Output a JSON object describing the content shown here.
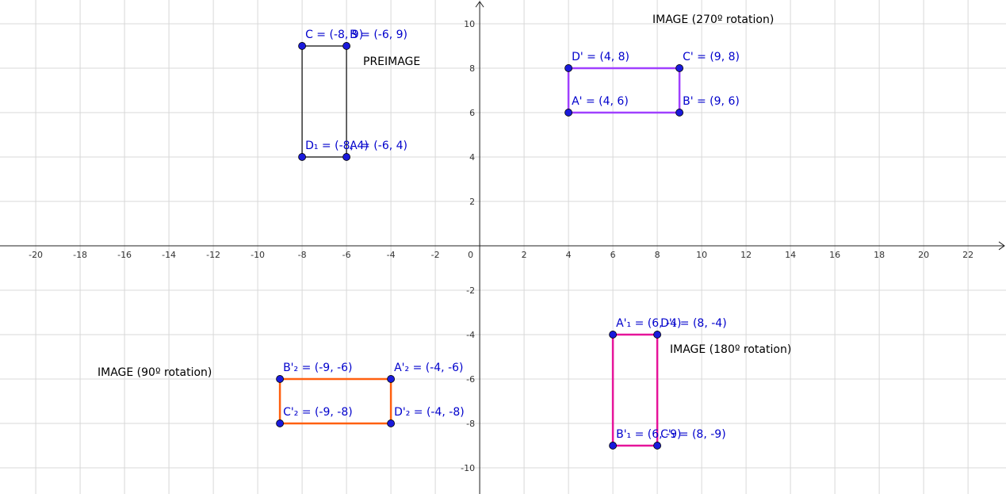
{
  "chart_data": {
    "type": "geometry",
    "xlim": [
      -21.61,
      23.71
    ],
    "ylim": [
      -11.18,
      11.07
    ],
    "xticks": [
      -20,
      -18,
      -16,
      -14,
      -12,
      -10,
      -8,
      -6,
      -4,
      -2,
      0,
      2,
      4,
      6,
      8,
      10,
      12,
      14,
      16,
      18,
      20,
      22
    ],
    "yticks": [
      -10,
      -8,
      -6,
      -4,
      -2,
      2,
      4,
      6,
      8,
      10
    ],
    "grid": true,
    "annotations": [
      "IMAGE (270º rotation)",
      "PREIMAGE",
      "IMAGE (180º rotation)",
      "IMAGE (90º rotation)"
    ],
    "polygons": [
      {
        "color": "#333333",
        "points": [
          {
            "label": "A = (-6, 4)",
            "x": -6,
            "y": 4
          },
          {
            "label": "B = (-6, 9)",
            "x": -6,
            "y": 9
          },
          {
            "label": "C = (-8, 9)",
            "x": -8,
            "y": 9
          },
          {
            "label": "D₁ = (-8, 4)",
            "x": -8,
            "y": 4
          }
        ]
      },
      {
        "color": "#a040ff",
        "points": [
          {
            "label": "A' = (4, 6)",
            "x": 4,
            "y": 6
          },
          {
            "label": "B' = (9, 6)",
            "x": 9,
            "y": 6
          },
          {
            "label": "C' = (9, 8)",
            "x": 9,
            "y": 8
          },
          {
            "label": "D' = (4, 8)",
            "x": 4,
            "y": 8
          }
        ]
      },
      {
        "color": "#e6149a",
        "points": [
          {
            "label": "A'₁ = (6, -4)",
            "x": 6,
            "y": -4
          },
          {
            "label": "B'₁ = (6, -9)",
            "x": 6,
            "y": -9
          },
          {
            "label": "C'₁ = (8, -9)",
            "x": 8,
            "y": -9
          },
          {
            "label": "D'₁ = (8, -4)",
            "x": 8,
            "y": -4
          }
        ]
      },
      {
        "color": "#ff6010",
        "points": [
          {
            "label": "A'₂ = (-4, -6)",
            "x": -4,
            "y": -6
          },
          {
            "label": "B'₂ = (-9, -6)",
            "x": -9,
            "y": -6
          },
          {
            "label": "C'₂ = (-9, -8)",
            "x": -9,
            "y": -8
          },
          {
            "label": "D'₂ = (-4, -8)",
            "x": -4,
            "y": -8
          }
        ]
      }
    ]
  }
}
